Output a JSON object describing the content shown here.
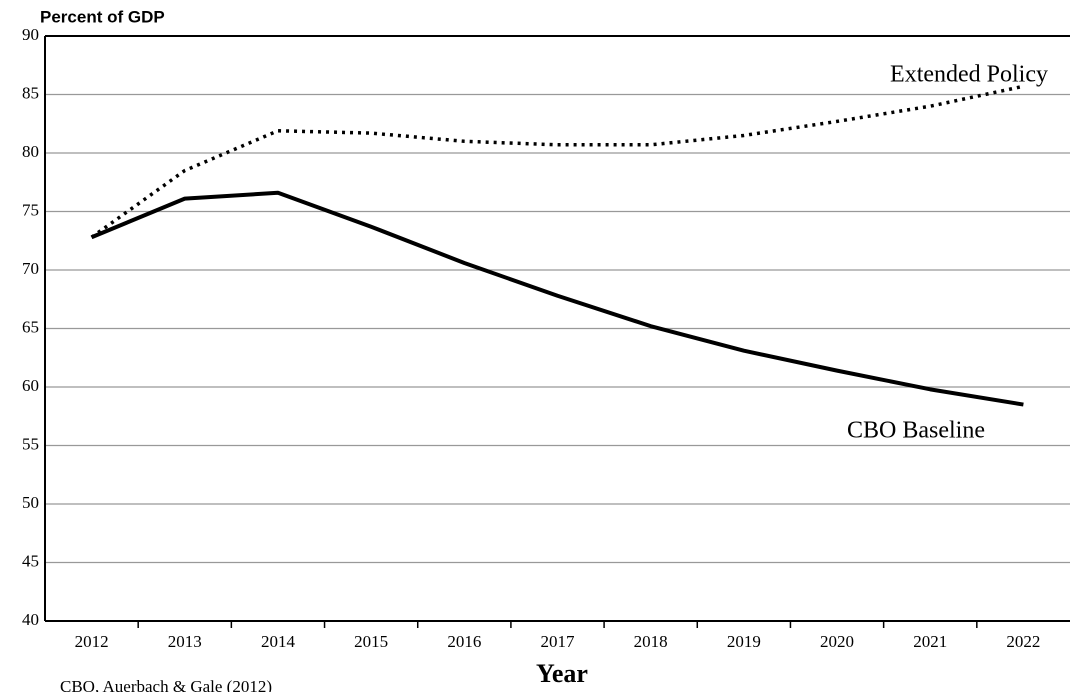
{
  "chart_data": {
    "type": "line",
    "y_label": "Percent of GDP",
    "x_label": "Year",
    "source": "CBO, Auerbach & Gale (2012)",
    "categories": [
      "2012",
      "2013",
      "2014",
      "2015",
      "2016",
      "2017",
      "2018",
      "2019",
      "2020",
      "2021",
      "2022"
    ],
    "series": [
      {
        "name": "Extended Policy",
        "color": "#000000",
        "style": "dotted",
        "values": [
          72.8,
          78.5,
          81.9,
          81.7,
          81.0,
          80.7,
          80.7,
          81.5,
          82.7,
          84.0,
          85.7
        ]
      },
      {
        "name": "CBO Baseline",
        "color": "#000000",
        "style": "solid",
        "values": [
          72.8,
          76.1,
          76.6,
          73.7,
          70.6,
          67.8,
          65.2,
          63.1,
          61.4,
          59.8,
          58.5
        ]
      }
    ],
    "ylim": [
      40,
      90
    ],
    "yticks": [
      40,
      45,
      50,
      55,
      60,
      65,
      70,
      75,
      80,
      85,
      90
    ],
    "grid": true
  }
}
